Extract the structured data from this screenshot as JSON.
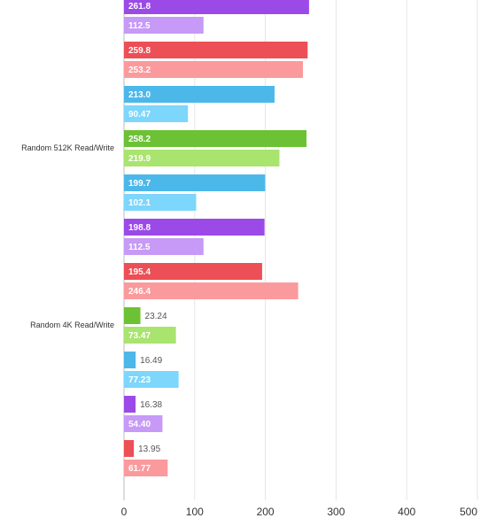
{
  "chart_data": {
    "type": "bar",
    "orientation": "horizontal",
    "xlim": [
      0,
      500
    ],
    "x_ticks": [
      "0",
      "100",
      "200",
      "300",
      "400",
      "500"
    ],
    "grid": true,
    "groups": [
      {
        "label": "",
        "bars": [
          {
            "value": 261.8,
            "label": "261.8",
            "color": "#9b4ae8"
          },
          {
            "value": 112.5,
            "label": "112.5",
            "color": "#c69af6"
          },
          {
            "value": 259.8,
            "label": "259.8",
            "color": "#ec4f55"
          },
          {
            "value": 253.2,
            "label": "253.2",
            "color": "#fb9a9c"
          },
          {
            "value": 213.0,
            "label": "213.0",
            "color": "#4cb8ea"
          },
          {
            "value": 90.47,
            "label": "90.47",
            "color": "#7dd6fb"
          }
        ]
      },
      {
        "label": "Random 512K Read/Write",
        "bars": [
          {
            "value": 258.2,
            "label": "258.2",
            "color": "#6cc234"
          },
          {
            "value": 219.9,
            "label": "219.9",
            "color": "#a9e46f"
          },
          {
            "value": 199.7,
            "label": "199.7",
            "color": "#4cb8ea"
          },
          {
            "value": 102.1,
            "label": "102.1",
            "color": "#7dd6fb"
          },
          {
            "value": 198.8,
            "label": "198.8",
            "color": "#9b4ae8"
          },
          {
            "value": 112.5,
            "label": "112.5",
            "color": "#c69af6"
          },
          {
            "value": 195.4,
            "label": "195.4",
            "color": "#ec4f55"
          },
          {
            "value": 246.4,
            "label": "246.4",
            "color": "#fb9a9c"
          }
        ]
      },
      {
        "label": "Random 4K Read/Write",
        "bars": [
          {
            "value": 23.24,
            "label": "23.24",
            "color": "#6cc234"
          },
          {
            "value": 73.47,
            "label": "73.47",
            "color": "#a9e46f"
          },
          {
            "value": 16.49,
            "label": "16.49",
            "color": "#4cb8ea"
          },
          {
            "value": 77.23,
            "label": "77.23",
            "color": "#7dd6fb"
          },
          {
            "value": 16.38,
            "label": "16.38",
            "color": "#9b4ae8"
          },
          {
            "value": 54.4,
            "label": "54.40",
            "color": "#c69af6"
          },
          {
            "value": 13.95,
            "label": "13.95",
            "color": "#ec4f55"
          },
          {
            "value": 61.77,
            "label": "61.77",
            "color": "#fb9a9c"
          }
        ]
      }
    ]
  }
}
